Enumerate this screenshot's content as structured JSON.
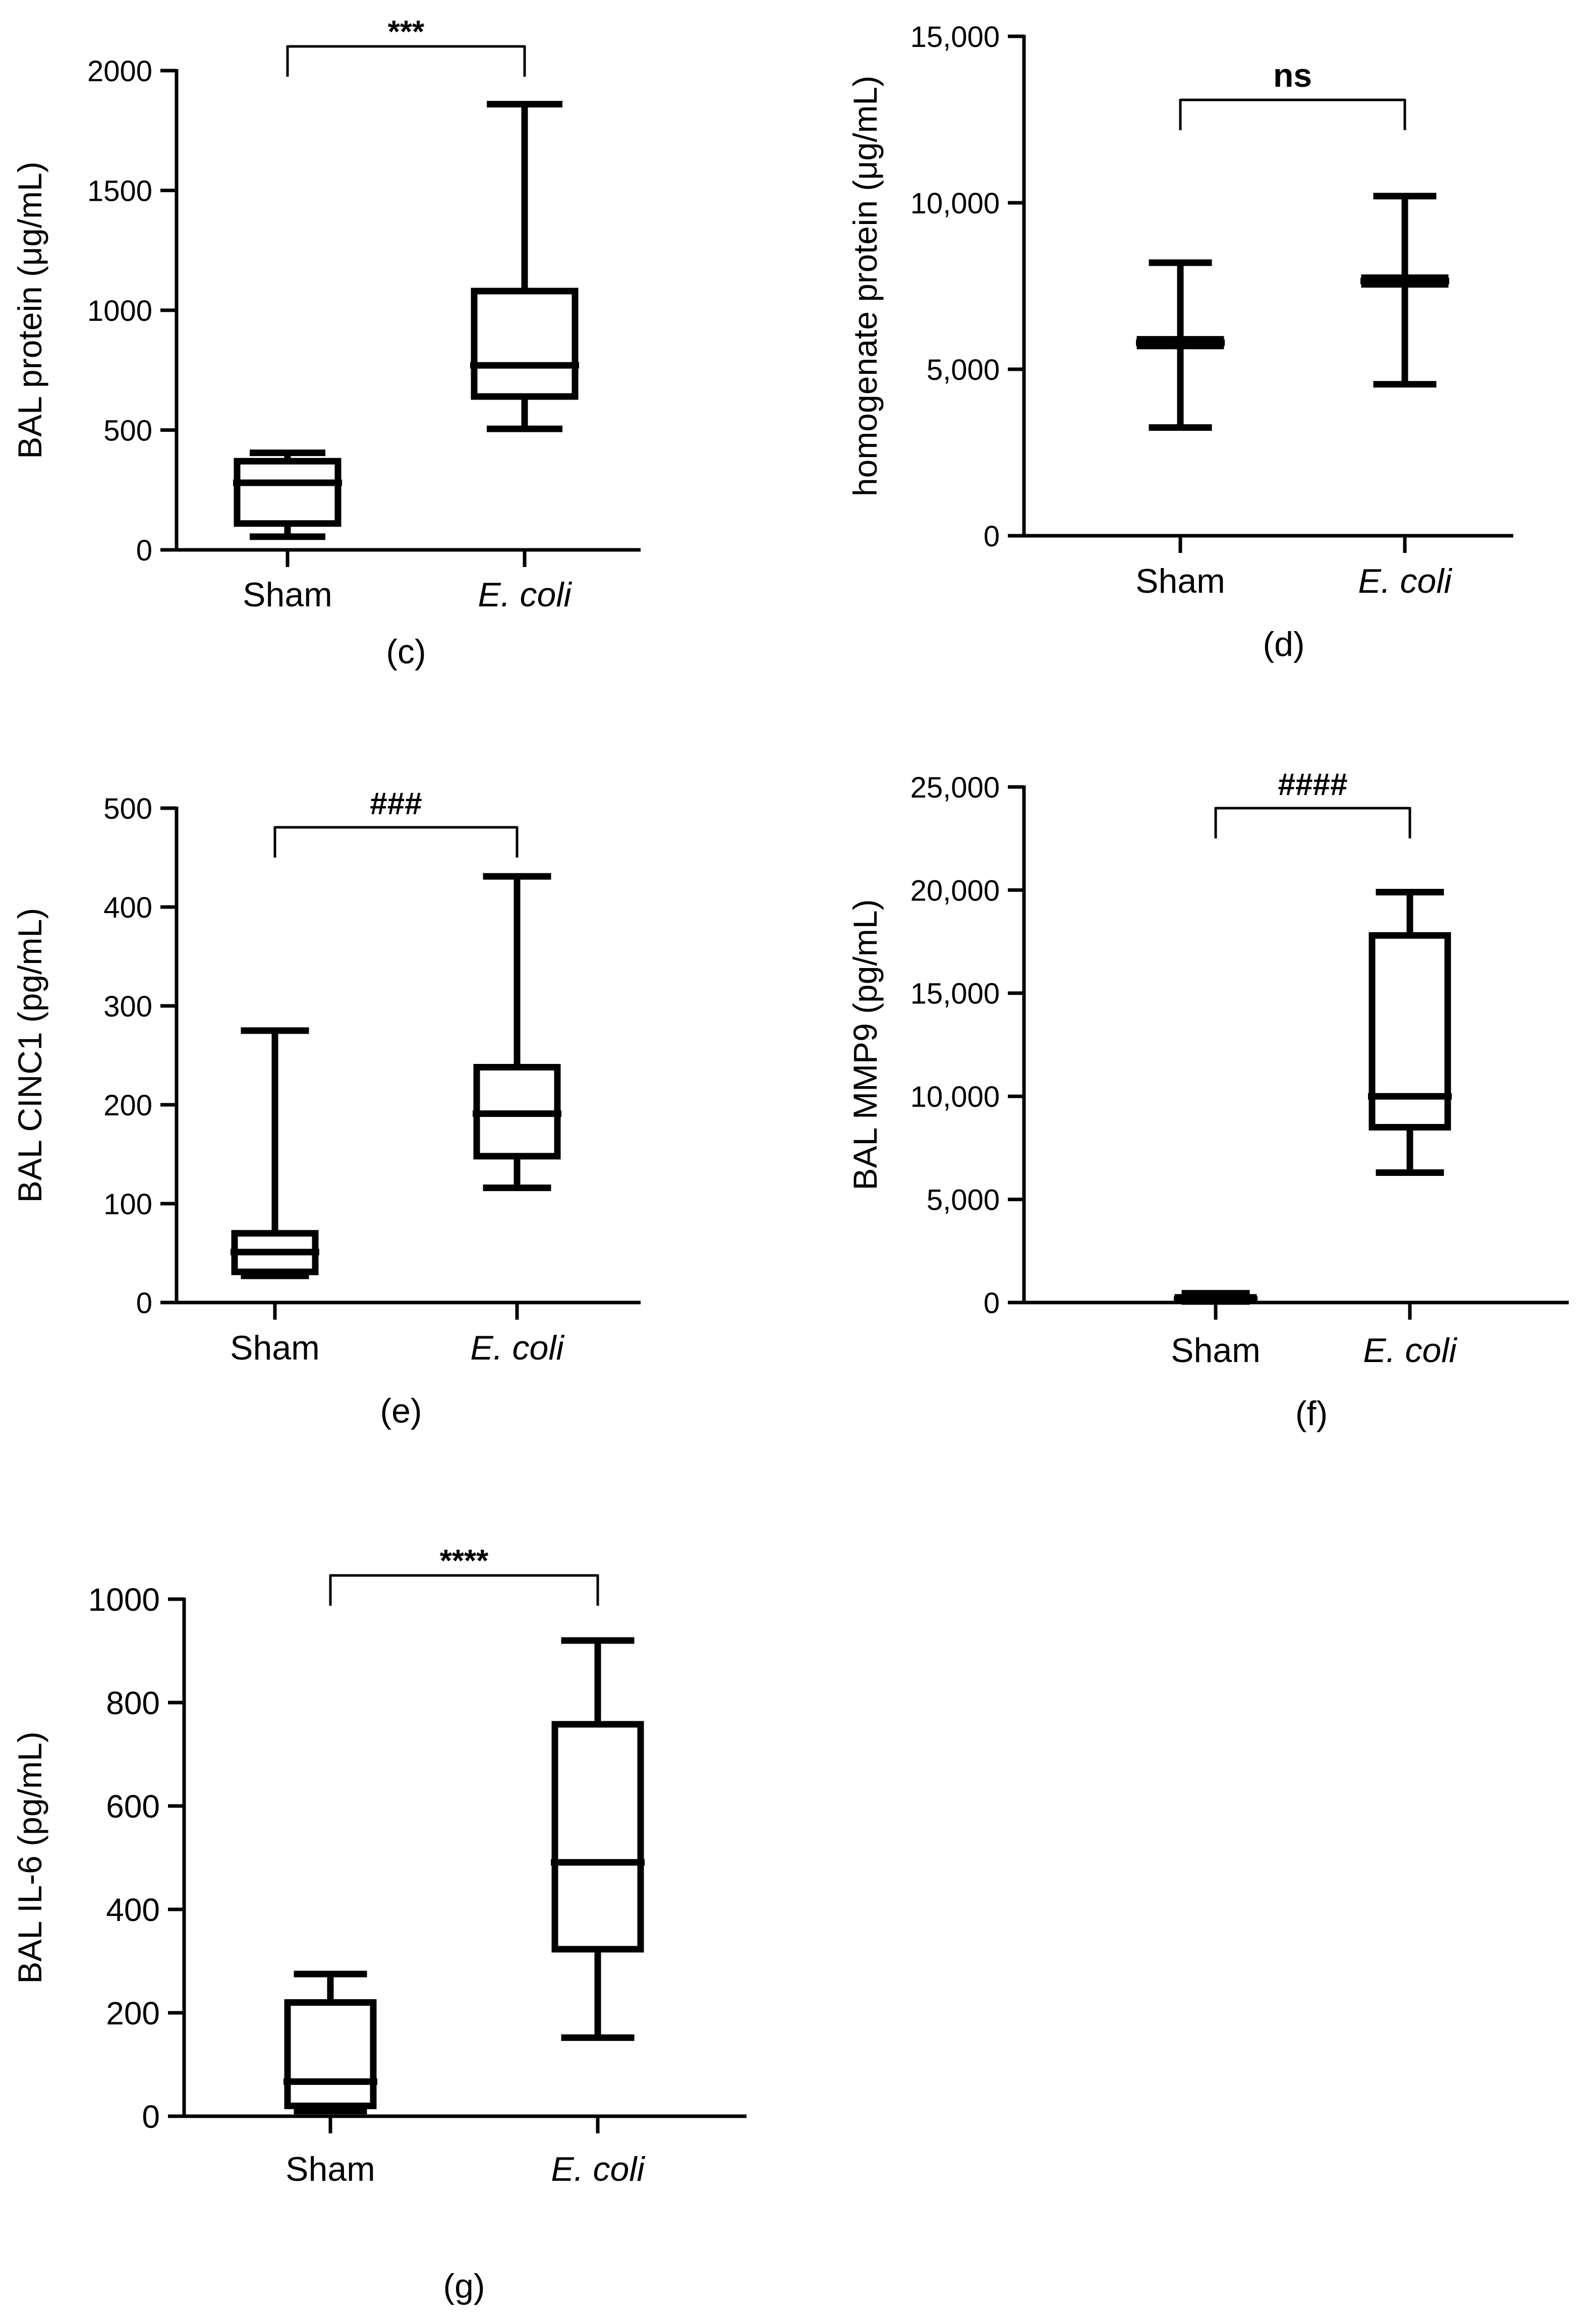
{
  "chart_data": [
    {
      "type": "box",
      "panel_label": "(c)",
      "ylabel": "BAL protein (μg/mL)",
      "ylim": [
        0,
        2000
      ],
      "yticks": [
        0,
        500,
        1000,
        1500,
        2000
      ],
      "ytick_labels": [
        "0",
        "500",
        "1000",
        "1500",
        "2000"
      ],
      "categories": [
        "Sham",
        "E. coli"
      ],
      "category_italic": [
        false,
        true
      ],
      "boxes": [
        {
          "min": 55,
          "q1": 110,
          "median": 280,
          "q3": 370,
          "max": 405
        },
        {
          "min": 505,
          "q1": 640,
          "median": 770,
          "q3": 1080,
          "max": 1860
        }
      ],
      "significance": "***"
    },
    {
      "type": "box",
      "panel_label": "(d)",
      "ylabel": "homogenate protein (μg/mL)",
      "ylim": [
        0,
        15000
      ],
      "yticks": [
        0,
        5000,
        10000,
        15000
      ],
      "ytick_labels": [
        "0",
        "5,000",
        "10,000",
        "15,000"
      ],
      "categories": [
        "Sham",
        "E. coli"
      ],
      "category_italic": [
        false,
        true
      ],
      "boxes": [
        {
          "min": 3250,
          "q1": 5700,
          "median": 5800,
          "q3": 5900,
          "max": 8200
        },
        {
          "min": 4550,
          "q1": 7550,
          "median": 7650,
          "q3": 7750,
          "max": 10200
        }
      ],
      "significance": "ns"
    },
    {
      "type": "box",
      "panel_label": "(e)",
      "ylabel": "BAL CINC1 (pg/mL)",
      "ylim": [
        0,
        500
      ],
      "yticks": [
        0,
        100,
        200,
        300,
        400,
        500
      ],
      "ytick_labels": [
        "0",
        "100",
        "200",
        "300",
        "400",
        "500"
      ],
      "categories": [
        "Sham",
        "E. coli"
      ],
      "category_italic": [
        false,
        true
      ],
      "boxes": [
        {
          "min": 27,
          "q1": 31,
          "median": 51,
          "q3": 70,
          "max": 275
        },
        {
          "min": 116,
          "q1": 148,
          "median": 191,
          "q3": 238,
          "max": 431
        }
      ],
      "significance": "###"
    },
    {
      "type": "box",
      "panel_label": "(f)",
      "ylabel": "BAL MMP9 (pg/mL)",
      "ylim": [
        0,
        25000
      ],
      "yticks": [
        0,
        5000,
        10000,
        15000,
        20000,
        25000
      ],
      "ytick_labels": [
        "0",
        "5,000",
        "10,000",
        "15,000",
        "20,000",
        "25,000"
      ],
      "categories": [
        "Sham",
        "E. coli"
      ],
      "category_italic": [
        false,
        true
      ],
      "boxes": [
        {
          "min": 50,
          "q1": 100,
          "median": 150,
          "q3": 250,
          "max": 450
        },
        {
          "min": 6300,
          "q1": 8500,
          "median": 10000,
          "q3": 17800,
          "max": 19900
        }
      ],
      "significance": "####"
    },
    {
      "type": "box",
      "panel_label": "(g)",
      "ylabel": "BAL IL-6 (pg/mL)",
      "ylim": [
        0,
        1000
      ],
      "yticks": [
        0,
        200,
        400,
        600,
        800,
        1000
      ],
      "ytick_labels": [
        "0",
        "200",
        "400",
        "600",
        "800",
        "1000"
      ],
      "categories": [
        "Sham",
        "E. coli"
      ],
      "category_italic": [
        false,
        true
      ],
      "boxes": [
        {
          "min": 10,
          "q1": 20,
          "median": 67,
          "q3": 220,
          "max": 275
        },
        {
          "min": 152,
          "q1": 323,
          "median": 491,
          "q3": 758,
          "max": 920
        }
      ],
      "significance": "****"
    }
  ],
  "colors": {
    "ink": "#000000",
    "background": "#ffffff"
  }
}
